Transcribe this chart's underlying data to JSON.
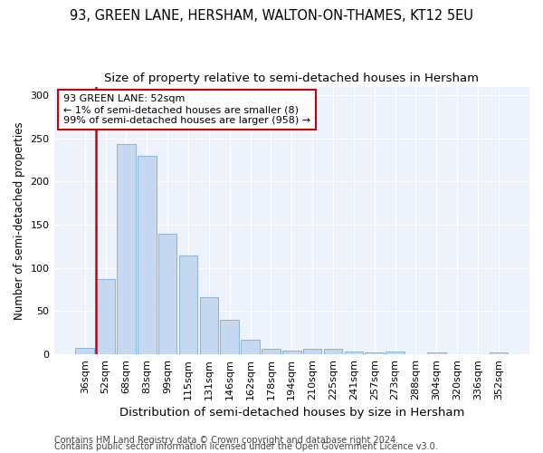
{
  "title": "93, GREEN LANE, HERSHAM, WALTON-ON-THAMES, KT12 5EU",
  "subtitle": "Size of property relative to semi-detached houses in Hersham",
  "xlabel": "Distribution of semi-detached houses by size in Hersham",
  "ylabel": "Number of semi-detached properties",
  "categories": [
    "36sqm",
    "52sqm",
    "68sqm",
    "83sqm",
    "99sqm",
    "115sqm",
    "131sqm",
    "146sqm",
    "162sqm",
    "178sqm",
    "194sqm",
    "210sqm",
    "225sqm",
    "241sqm",
    "257sqm",
    "273sqm",
    "288sqm",
    "304sqm",
    "320sqm",
    "336sqm",
    "352sqm"
  ],
  "values": [
    8,
    87,
    243,
    230,
    140,
    114,
    66,
    40,
    17,
    7,
    4,
    6,
    6,
    3,
    2,
    3,
    0,
    2,
    0,
    0,
    2
  ],
  "bar_color": "#c5d8f0",
  "bar_edge_color": "#7aadd4",
  "highlight_index": 1,
  "vline_color": "#cc0000",
  "annotation_text": "93 GREEN LANE: 52sqm\n← 1% of semi-detached houses are smaller (8)\n99% of semi-detached houses are larger (958) →",
  "footer1": "Contains HM Land Registry data © Crown copyright and database right 2024.",
  "footer2": "Contains public sector information licensed under the Open Government Licence v3.0.",
  "ylim": [
    0,
    310
  ],
  "title_fontsize": 10.5,
  "subtitle_fontsize": 9.5,
  "xlabel_fontsize": 9.5,
  "ylabel_fontsize": 8.5,
  "tick_fontsize": 8,
  "annotation_fontsize": 8,
  "footer_fontsize": 7,
  "background_color": "#ffffff",
  "plot_bg_color": "#eef2fb"
}
